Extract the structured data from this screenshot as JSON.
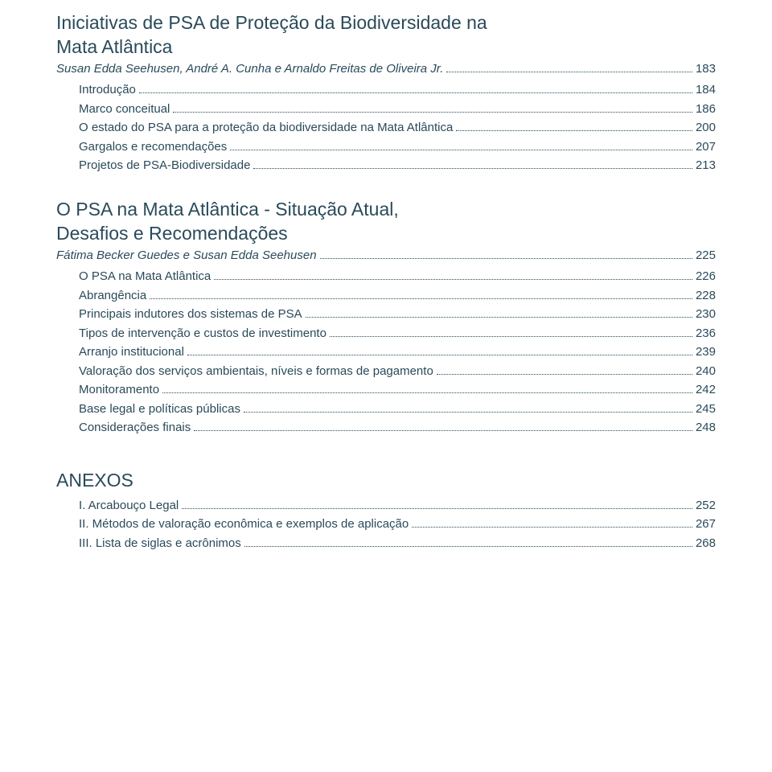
{
  "colors": {
    "text": "#2a4a5a",
    "background": "#ffffff",
    "leader": "#2a4a5a"
  },
  "typography": {
    "title_fontsize": 23,
    "body_fontsize": 15,
    "font_family": "Helvetica Neue, Helvetica, Arial, sans-serif"
  },
  "chapter1": {
    "title_line1": "Iniciativas de PSA de Proteção da Biodiversidade na",
    "title_line2": "Mata Atlântica",
    "authors": "Susan Edda Seehusen, André A. Cunha e Arnaldo Freitas de Oliveira Jr.",
    "page": "183",
    "items": [
      {
        "label": "Introdução",
        "page": "184"
      },
      {
        "label": "Marco conceitual",
        "page": "186"
      },
      {
        "label": "O estado do PSA para a proteção da biodiversidade na Mata Atlântica",
        "page": "200"
      },
      {
        "label": "Gargalos e recomendações",
        "page": "207"
      },
      {
        "label": "Projetos de PSA-Biodiversidade",
        "page": "213"
      }
    ]
  },
  "chapter2": {
    "title_line1": "O PSA na Mata Atlântica - Situação Atual,",
    "title_line2": "Desafios e Recomendações",
    "authors": "Fátima Becker Guedes e Susan Edda Seehusen",
    "page": "225",
    "items": [
      {
        "label": "O PSA na Mata Atlântica",
        "page": "226"
      },
      {
        "label": "Abrangência",
        "page": "228"
      },
      {
        "label": "Principais indutores dos sistemas de PSA",
        "page": "230"
      },
      {
        "label": "Tipos de intervenção e custos de investimento",
        "page": "236"
      },
      {
        "label": "Arranjo institucional",
        "page": "239"
      },
      {
        "label": "Valoração dos serviços ambientais, níveis e formas de pagamento",
        "page": "240"
      },
      {
        "label": "Monitoramento",
        "page": "242"
      },
      {
        "label": "Base legal e políticas públicas",
        "page": "245"
      },
      {
        "label": "Considerações finais",
        "page": "248"
      }
    ]
  },
  "anexos": {
    "heading": "ANEXOS",
    "items": [
      {
        "label": "I. Arcabouço Legal",
        "page": "252"
      },
      {
        "label": "II. Métodos de valoração econômica e exemplos de aplicação",
        "page": "267"
      },
      {
        "label": "III. Lista de siglas e acrônimos",
        "page": "268"
      }
    ]
  }
}
